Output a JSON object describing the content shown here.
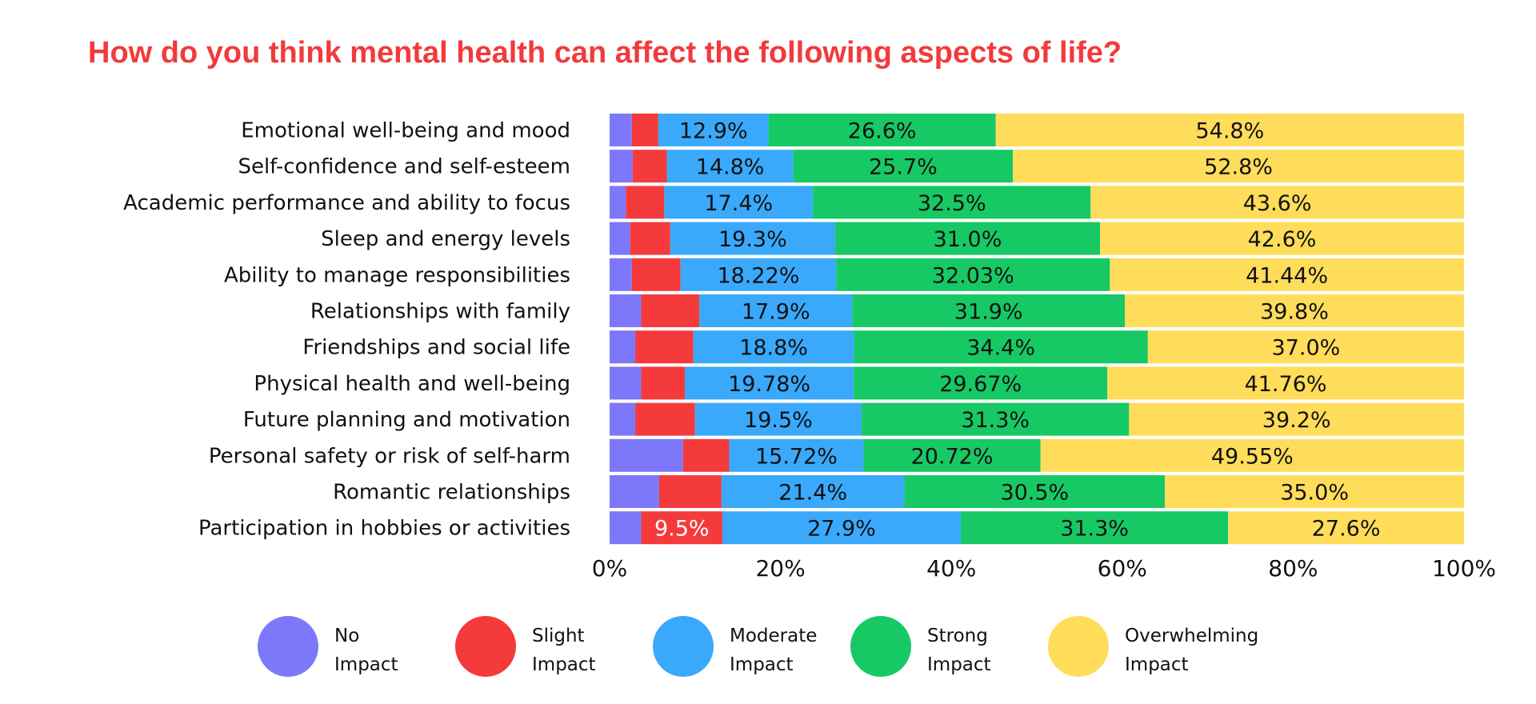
{
  "chart_data": {
    "type": "bar",
    "orientation": "horizontal",
    "stacked": true,
    "title": "How do you think mental health can affect the following aspects of life?",
    "xlabel": "",
    "ylabel": "",
    "xlim": [
      0,
      100
    ],
    "xticks": [
      "0%",
      "20%",
      "40%",
      "60%",
      "80%",
      "100%"
    ],
    "grid": false,
    "legend_position": "bottom",
    "categories": [
      "Emotional well-being and mood",
      "Self-confidence and self-esteem",
      "Academic performance and ability to focus",
      "Sleep and energy levels",
      "Ability to manage responsibilities",
      "Relationships with family",
      "Friendships and social life",
      "Physical health and well-being",
      "Future planning and motivation",
      "Personal safety or risk of self-harm",
      "Romantic relationships",
      "Participation in hobbies or activities"
    ],
    "series": [
      {
        "name": "No Impact",
        "legend_lines": [
          "No",
          "Impact"
        ],
        "color": "#7d78fa",
        "values": [
          2.6,
          2.7,
          1.9,
          2.4,
          2.6,
          3.7,
          3.0,
          3.7,
          3.0,
          8.6,
          5.8,
          3.7
        ]
      },
      {
        "name": "Slight Impact",
        "legend_lines": [
          "Slight",
          "Impact"
        ],
        "color": "#f53a3c",
        "values": [
          3.1,
          4.0,
          4.5,
          4.7,
          5.7,
          6.8,
          6.8,
          5.1,
          7.0,
          5.4,
          7.3,
          9.5
        ],
        "labels": [
          "",
          "",
          "",
          "",
          "",
          "",
          "",
          "",
          "",
          "",
          "",
          "9.5%"
        ]
      },
      {
        "name": "Moderate Impact",
        "legend_lines": [
          "Moderate",
          "Impact"
        ],
        "color": "#3aa9fb",
        "values": [
          12.9,
          14.8,
          17.4,
          19.3,
          18.22,
          17.9,
          18.8,
          19.78,
          19.5,
          15.72,
          21.4,
          27.9
        ],
        "labels": [
          "12.9%",
          "14.8%",
          "17.4%",
          "19.3%",
          "18.22%",
          "17.9%",
          "18.8%",
          "19.78%",
          "19.5%",
          "15.72%",
          "21.4%",
          "27.9%"
        ]
      },
      {
        "name": "Strong Impact",
        "legend_lines": [
          "Strong",
          "Impact"
        ],
        "color": "#17c964",
        "values": [
          26.6,
          25.7,
          32.5,
          31.0,
          32.03,
          31.9,
          34.4,
          29.67,
          31.3,
          20.72,
          30.5,
          31.3
        ],
        "labels": [
          "26.6%",
          "25.7%",
          "32.5%",
          "31.0%",
          "32.03%",
          "31.9%",
          "34.4%",
          "29.67%",
          "31.3%",
          "20.72%",
          "30.5%",
          "31.3%"
        ]
      },
      {
        "name": "Overwhelming Impact",
        "legend_lines": [
          "Overwhelming",
          "Impact"
        ],
        "color": "#ffdc5a",
        "values": [
          54.8,
          52.8,
          43.6,
          42.6,
          41.44,
          39.8,
          37.0,
          41.76,
          39.2,
          49.55,
          35.0,
          27.6
        ],
        "labels": [
          "54.8%",
          "52.8%",
          "43.6%",
          "42.6%",
          "41.44%",
          "39.8%",
          "37.0%",
          "41.76%",
          "39.2%",
          "49.55%",
          "35.0%",
          "27.6%"
        ]
      }
    ]
  }
}
